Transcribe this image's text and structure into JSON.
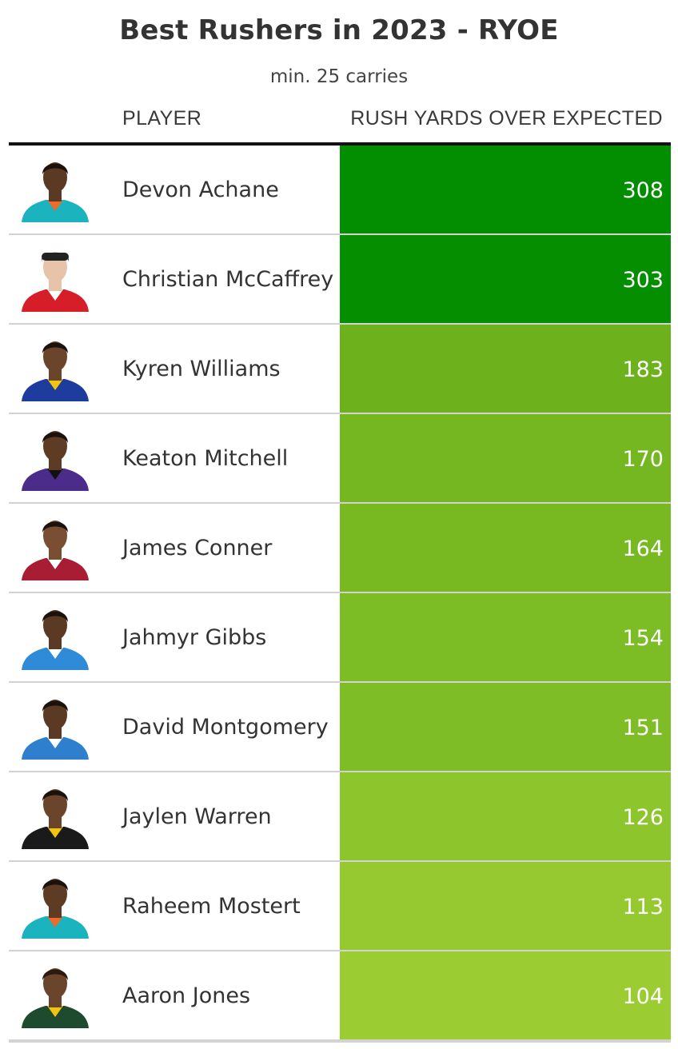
{
  "title": "Best Rushers in 2023 - RYOE",
  "subtitle": "min. 25 carries",
  "columns": {
    "player": "PLAYER",
    "value": "RUSH YARDS OVER EXPECTED"
  },
  "colors": {
    "header_rule": "#111111",
    "row_divider": "#d3d3d3"
  },
  "rows": [
    {
      "player": "Devon Achane",
      "value": "308",
      "cell_color": "#038d00",
      "jersey": "#1ab3be",
      "jersey_accent": "#f06a2a",
      "hair": "#1c1209",
      "helmet": false,
      "skin": "#5a3a25"
    },
    {
      "player": "Christian McCaffrey",
      "value": "303",
      "cell_color": "#048e00",
      "jersey": "#d51e27",
      "jersey_accent": "#ffffff",
      "hair": "#2a2a2a",
      "helmet": true,
      "skin": "#e7c3aa"
    },
    {
      "player": "Kyren Williams",
      "value": "183",
      "cell_color": "#6db21d",
      "jersey": "#1d3c9e",
      "jersey_accent": "#f1c40f",
      "hair": "#1a120c",
      "helmet": false,
      "skin": "#6a452c"
    },
    {
      "player": "Keaton Mitchell",
      "value": "170",
      "cell_color": "#74b720",
      "jersey": "#4b2c8a",
      "jersey_accent": "#111111",
      "hair": "#1a120c",
      "helmet": false,
      "skin": "#5d3b24"
    },
    {
      "player": "James Conner",
      "value": "164",
      "cell_color": "#78b922",
      "jersey": "#a81d34",
      "jersey_accent": "#ffffff",
      "hair": "#1a120c",
      "helmet": false,
      "skin": "#7a4e33"
    },
    {
      "player": "Jahmyr Gibbs",
      "value": "154",
      "cell_color": "#7cbc24",
      "jersey": "#2f8bd8",
      "jersey_accent": "#ffffff",
      "hair": "#1a120c",
      "helmet": false,
      "skin": "#5a3a25"
    },
    {
      "player": "David Montgomery",
      "value": "151",
      "cell_color": "#7ebd25",
      "jersey": "#2f7fcf",
      "jersey_accent": "#ffffff",
      "hair": "#1a120c",
      "helmet": false,
      "skin": "#5a3a25"
    },
    {
      "player": "Jaylen Warren",
      "value": "126",
      "cell_color": "#8dc52c",
      "jersey": "#1a1a1a",
      "jersey_accent": "#f1c40f",
      "hair": "#1a120c",
      "helmet": false,
      "skin": "#6a452c"
    },
    {
      "player": "Raheem Mostert",
      "value": "113",
      "cell_color": "#95c92f",
      "jersey": "#1ab3be",
      "jersey_accent": "#f06a2a",
      "hair": "#1a120c",
      "helmet": false,
      "skin": "#5d3b24"
    },
    {
      "player": "Aaron Jones",
      "value": "104",
      "cell_color": "#9bcd32",
      "jersey": "#1e4a2d",
      "jersey_accent": "#f1c40f",
      "hair": "#2a1a0d",
      "helmet": false,
      "skin": "#6a452c"
    }
  ]
}
